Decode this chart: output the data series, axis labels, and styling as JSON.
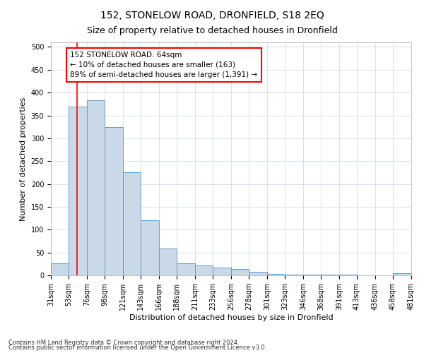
{
  "title": "152, STONELOW ROAD, DRONFIELD, S18 2EQ",
  "subtitle": "Size of property relative to detached houses in Dronfield",
  "xlabel": "Distribution of detached houses by size in Dronfield",
  "ylabel": "Number of detached properties",
  "footnote1": "Contains HM Land Registry data © Crown copyright and database right 2024.",
  "footnote2": "Contains public sector information licensed under the Open Government Licence v3.0.",
  "annotation_title": "152 STONELOW ROAD: 64sqm",
  "annotation_line1": "← 10% of detached houses are smaller (163)",
  "annotation_line2": "89% of semi-detached houses are larger (1,391) →",
  "bar_edges": [
    31,
    53,
    76,
    98,
    121,
    143,
    166,
    188,
    211,
    233,
    256,
    278,
    301,
    323,
    346,
    368,
    391,
    413,
    436,
    458,
    481
  ],
  "bar_heights": [
    26,
    370,
    383,
    325,
    225,
    120,
    58,
    27,
    21,
    17,
    14,
    8,
    3,
    2,
    1,
    1,
    1,
    0,
    0,
    5
  ],
  "bar_color": "#c9d9e8",
  "bar_edge_color": "#5b9bd5",
  "red_line_x": 64,
  "ylim": [
    0,
    510
  ],
  "yticks": [
    0,
    50,
    100,
    150,
    200,
    250,
    300,
    350,
    400,
    450,
    500
  ],
  "background_color": "#ffffff",
  "grid_color": "#c8d4e0",
  "title_fontsize": 10,
  "subtitle_fontsize": 9,
  "axis_label_fontsize": 8,
  "tick_fontsize": 7,
  "annotation_fontsize": 7.5,
  "footnote_fontsize": 6
}
